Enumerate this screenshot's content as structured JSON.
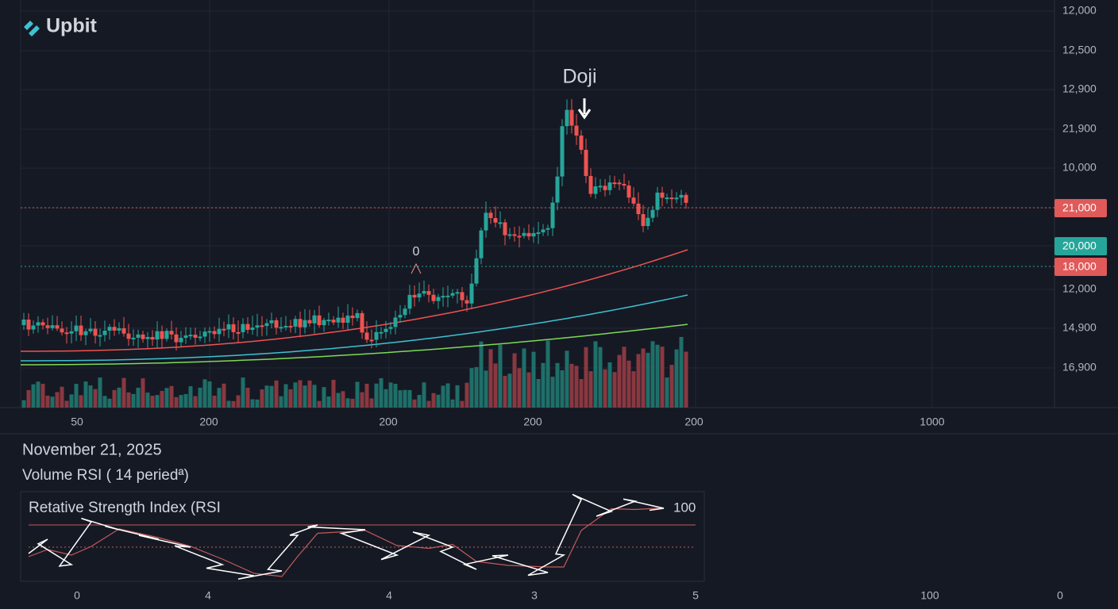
{
  "logo": "Upbit",
  "annotations": {
    "doji": "Doji",
    "zero": "0"
  },
  "price_axis": [
    "12,000",
    "12,500",
    "12,900",
    "21,900",
    "10,000",
    "12,000",
    "14,900",
    "16,900"
  ],
  "badges": [
    "21,000",
    "20,000",
    "18,000"
  ],
  "time_axis": [
    "50",
    "200",
    "200",
    "200",
    "200",
    "1000"
  ],
  "date": "November 21, 2025",
  "indicator": "Volume RSI ( 14 periedª)",
  "rsi": {
    "title": "Retative Strength Index (RSI",
    "level": "100"
  },
  "rsi_axis": [
    "0",
    "4",
    "4",
    "3",
    "5",
    "100",
    "0"
  ]
}
